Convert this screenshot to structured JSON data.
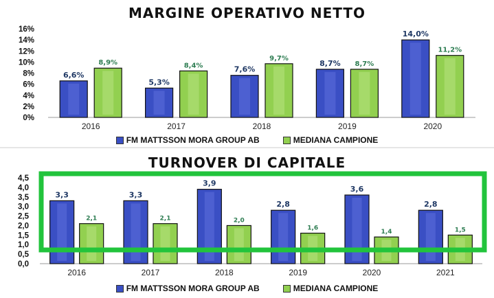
{
  "colors": {
    "series_a": "#3a4fc4",
    "series_a_light": "#5c70dc",
    "series_b": "#92d050",
    "series_b_light": "#b7e27f",
    "label_a": "#1f3864",
    "label_b": "#2e7d52",
    "highlight": "#22c43c"
  },
  "chart_data": [
    {
      "type": "bar",
      "title": "MARGINE OPERATIVO NETTO",
      "categories": [
        "2016",
        "2017",
        "2018",
        "2019",
        "2020"
      ],
      "series": [
        {
          "name": "FM MATTSSON MORA GROUP AB",
          "values": [
            6.6,
            5.3,
            7.6,
            8.7,
            14.0
          ],
          "labels": [
            "6,6%",
            "5,3%",
            "7,6%",
            "8,7%",
            "14,0%"
          ]
        },
        {
          "name": "MEDIANA CAMPIONE",
          "values": [
            8.9,
            8.4,
            9.7,
            8.7,
            11.2
          ],
          "labels": [
            "8,9%",
            "8,4%",
            "9,7%",
            "8,7%",
            "11,2%"
          ]
        }
      ],
      "ylim": [
        0,
        16
      ],
      "yticks": [
        "0%",
        "2%",
        "4%",
        "6%",
        "8%",
        "10%",
        "12%",
        "14%",
        "16%"
      ],
      "legend": "bottom",
      "grid": false
    },
    {
      "type": "bar",
      "title": "TURNOVER DI CAPITALE",
      "categories": [
        "2016",
        "2017",
        "2018",
        "2019",
        "2020",
        "2021"
      ],
      "series": [
        {
          "name": "FM MATTSSON MORA GROUP AB",
          "values": [
            3.3,
            3.3,
            3.9,
            2.8,
            3.6,
            2.8
          ],
          "labels": [
            "3,3",
            "3,3",
            "3,9",
            "2,8",
            "3,6",
            "2,8"
          ]
        },
        {
          "name": "MEDIANA CAMPIONE",
          "values": [
            2.1,
            2.1,
            2.0,
            1.6,
            1.4,
            1.5
          ],
          "labels": [
            "2,1",
            "2,1",
            "2,0",
            "1,6",
            "1,4",
            "1,5"
          ]
        }
      ],
      "ylim": [
        0,
        4.5
      ],
      "yticks": [
        "0,0",
        "0,5",
        "1,0",
        "1,5",
        "2,0",
        "2,5",
        "3,0",
        "3,5",
        "4,0",
        "4,5"
      ],
      "legend": "bottom",
      "grid": false,
      "annotation": "green highlight rectangle"
    }
  ]
}
